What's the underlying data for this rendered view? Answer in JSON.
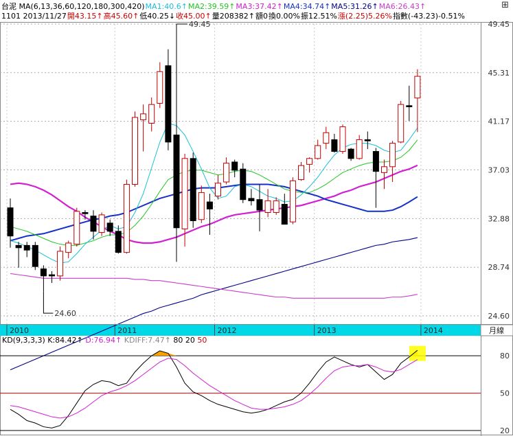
{
  "header": {
    "line1": [
      {
        "text": "台泥 MA(6,13,36,60,120,180,300,420)",
        "color": "#000000"
      },
      {
        "text": "MA1:40.6↑",
        "color": "#19bfd8"
      },
      {
        "text": "MA2:39.59↑",
        "color": "#22c622"
      },
      {
        "text": "MA3:37.42↑",
        "color": "#d020d0"
      },
      {
        "text": "MA4:34.74↑",
        "color": "#1530c8"
      },
      {
        "text": "MA5:31.26↑",
        "color": "#000088"
      },
      {
        "text": "MA6:26.43↑",
        "color": "#c83cc8"
      }
    ],
    "line2": [
      {
        "text": "1101 2013/11/27",
        "color": "#000000"
      },
      {
        "text": "開43.15↑",
        "color": "#cc0000"
      },
      {
        "text": "高45.60↑",
        "color": "#cc0000"
      },
      {
        "text": "低40.25↓",
        "color": "#000000"
      },
      {
        "text": "收45.00↑",
        "color": "#cc0000"
      },
      {
        "text": "量208382↑",
        "color": "#000000"
      },
      {
        "text": "額0",
        "color": "#000000"
      },
      {
        "text": "換0.00%",
        "color": "#000000"
      },
      {
        "text": "振12.51%",
        "color": "#000000"
      },
      {
        "text": "漲(2.25)5.26%",
        "color": "#cc0000"
      },
      {
        "text": "指數(-43.23)-0.51%",
        "color": "#000000"
      }
    ],
    "window_icons": "⊞"
  },
  "kd_header": [
    {
      "text": "KD(9,3,3,3)",
      "color": "#000000"
    },
    {
      "text": "K:84.42↑",
      "color": "#000000"
    },
    {
      "text": "D:76.94↑",
      "color": "#d020d0"
    },
    {
      "text": "KDIFF:7.47↑",
      "color": "#888888"
    },
    {
      "text": "80",
      "color": "#000000"
    },
    {
      "text": "20",
      "color": "#000000"
    },
    {
      "text": "50",
      "color": "#cc0000"
    }
  ],
  "chart_data": [
    {
      "type": "candlestick",
      "title": "台泥 MA(6,13,36,60,120,180,300,420)",
      "period": "月線",
      "ylim": [
        24.6,
        49.45
      ],
      "y_ticks": [
        "49.45",
        "45.31",
        "41.17",
        "37.03",
        "32.88",
        "28.74",
        "24.60"
      ],
      "x_labels": [
        "2010",
        "2011",
        "2012",
        "2013",
        "2014"
      ],
      "annotations": [
        {
          "text": "49.45",
          "kind": "high"
        },
        {
          "text": "24.60",
          "kind": "low"
        }
      ],
      "colors": {
        "up": "#c00000",
        "down": "#000000",
        "ma1": "#19bfd8",
        "ma2": "#22c622",
        "ma3": "#d020d0",
        "ma4": "#1530c8",
        "ma5": "#000088",
        "ma6": "#c83cc8",
        "axis_band": "#00d8e8"
      },
      "candles": [
        {
          "o": 33.8,
          "h": 34.6,
          "l": 30.4,
          "c": 31.4
        },
        {
          "o": 30.6,
          "h": 30.9,
          "l": 28.7,
          "c": 30.4
        },
        {
          "o": 30.6,
          "h": 30.9,
          "l": 29.6,
          "c": 30.2
        },
        {
          "o": 30.6,
          "h": 30.9,
          "l": 28.5,
          "c": 28.8
        },
        {
          "o": 28.6,
          "h": 28.9,
          "l": 26.7,
          "c": 28.0
        },
        {
          "o": 28.1,
          "h": 28.4,
          "l": 27.4,
          "c": 28.0
        },
        {
          "o": 28.0,
          "h": 30.5,
          "l": 27.6,
          "c": 30.1
        },
        {
          "o": 30.0,
          "h": 31.0,
          "l": 29.5,
          "c": 30.8
        },
        {
          "o": 30.7,
          "h": 33.8,
          "l": 30.5,
          "c": 33.5
        },
        {
          "o": 33.4,
          "h": 33.6,
          "l": 32.8,
          "c": 33.3
        },
        {
          "o": 33.1,
          "h": 33.6,
          "l": 31.1,
          "c": 31.8
        },
        {
          "o": 31.7,
          "h": 33.4,
          "l": 31.4,
          "c": 33.2
        },
        {
          "o": 32.5,
          "h": 32.8,
          "l": 31.4,
          "c": 31.8
        },
        {
          "o": 31.8,
          "h": 32.3,
          "l": 29.9,
          "c": 30.0
        },
        {
          "o": 30.0,
          "h": 36.2,
          "l": 29.9,
          "c": 35.8
        },
        {
          "o": 35.8,
          "h": 42.0,
          "l": 35.6,
          "c": 41.5
        },
        {
          "o": 41.3,
          "h": 42.6,
          "l": 38.6,
          "c": 41.8
        },
        {
          "o": 41.0,
          "h": 43.2,
          "l": 40.3,
          "c": 42.6
        },
        {
          "o": 42.7,
          "h": 46.2,
          "l": 42.3,
          "c": 45.4
        },
        {
          "o": 45.9,
          "h": 47.3,
          "l": 38.7,
          "c": 39.4
        },
        {
          "o": 40.0,
          "h": 49.45,
          "l": 29.2,
          "c": 32.1
        },
        {
          "o": 32.0,
          "h": 38.4,
          "l": 30.5,
          "c": 38.0
        },
        {
          "o": 38.0,
          "h": 38.5,
          "l": 32.1,
          "c": 32.7
        },
        {
          "o": 32.8,
          "h": 35.7,
          "l": 32.5,
          "c": 35.1
        },
        {
          "o": 34.3,
          "h": 35.0,
          "l": 31.5,
          "c": 33.7
        },
        {
          "o": 34.8,
          "h": 36.6,
          "l": 34.5,
          "c": 35.9
        },
        {
          "o": 36.0,
          "h": 38.1,
          "l": 35.8,
          "c": 37.6
        },
        {
          "o": 37.7,
          "h": 37.9,
          "l": 36.4,
          "c": 37.0
        },
        {
          "o": 37.1,
          "h": 37.6,
          "l": 34.2,
          "c": 34.5
        },
        {
          "o": 34.6,
          "h": 35.4,
          "l": 34.0,
          "c": 34.4
        },
        {
          "o": 34.5,
          "h": 35.8,
          "l": 31.8,
          "c": 33.6
        },
        {
          "o": 33.4,
          "h": 35.4,
          "l": 33.0,
          "c": 34.4
        },
        {
          "o": 33.4,
          "h": 34.7,
          "l": 33.2,
          "c": 34.4
        },
        {
          "o": 34.1,
          "h": 35.0,
          "l": 32.4,
          "c": 32.4
        },
        {
          "o": 32.6,
          "h": 36.4,
          "l": 32.4,
          "c": 36.1
        },
        {
          "o": 36.2,
          "h": 37.7,
          "l": 36.1,
          "c": 37.4
        },
        {
          "o": 37.5,
          "h": 38.1,
          "l": 36.8,
          "c": 38.0
        },
        {
          "o": 38.0,
          "h": 39.6,
          "l": 37.9,
          "c": 39.1
        },
        {
          "o": 39.3,
          "h": 40.7,
          "l": 38.8,
          "c": 40.2
        },
        {
          "o": 39.6,
          "h": 40.1,
          "l": 38.5,
          "c": 38.6
        },
        {
          "o": 38.6,
          "h": 40.9,
          "l": 38.4,
          "c": 40.7
        },
        {
          "o": 38.8,
          "h": 38.9,
          "l": 37.8,
          "c": 38.0
        },
        {
          "o": 38.0,
          "h": 40.0,
          "l": 37.9,
          "c": 39.6
        },
        {
          "o": 39.6,
          "h": 40.3,
          "l": 38.8,
          "c": 39.5
        },
        {
          "o": 38.6,
          "h": 38.9,
          "l": 33.8,
          "c": 36.9
        },
        {
          "o": 36.8,
          "h": 37.9,
          "l": 35.4,
          "c": 37.3
        },
        {
          "o": 37.3,
          "h": 39.5,
          "l": 36.0,
          "c": 39.3
        },
        {
          "o": 39.4,
          "h": 42.9,
          "l": 39.3,
          "c": 42.6
        },
        {
          "o": 42.5,
          "h": 44.2,
          "l": 41.2,
          "c": 42.4
        },
        {
          "o": 43.15,
          "h": 45.6,
          "l": 40.25,
          "c": 45.0
        }
      ],
      "ma1": [
        31.0,
        30.8,
        30.5,
        30.2,
        29.8,
        29.4,
        29.1,
        29.2,
        29.9,
        30.7,
        31.3,
        31.9,
        32.3,
        32.0,
        32.2,
        33.4,
        35.0,
        37.2,
        39.4,
        41.0,
        40.8,
        40.0,
        38.6,
        37.1,
        35.5,
        34.6,
        34.8,
        35.6,
        35.8,
        35.6,
        35.2,
        34.8,
        34.6,
        34.3,
        34.4,
        34.9,
        35.6,
        36.4,
        37.4,
        38.3,
        38.9,
        39.2,
        39.3,
        39.3,
        39.1,
        38.7,
        38.5,
        38.7,
        39.6,
        40.6
      ],
      "ma2": [
        32.2,
        32.0,
        31.8,
        31.5,
        31.2,
        30.9,
        30.7,
        30.6,
        30.6,
        30.8,
        31.0,
        31.3,
        31.5,
        31.5,
        31.7,
        32.3,
        33.1,
        34.1,
        35.2,
        36.2,
        36.6,
        36.9,
        37.0,
        37.0,
        36.8,
        36.6,
        36.7,
        36.9,
        37.0,
        36.9,
        36.6,
        36.2,
        35.8,
        35.4,
        35.2,
        35.1,
        35.1,
        35.4,
        35.8,
        36.3,
        36.8,
        37.1,
        37.4,
        37.6,
        37.7,
        37.7,
        37.8,
        38.1,
        38.7,
        39.59
      ],
      "ma3": [
        35.8,
        35.9,
        35.8,
        35.6,
        35.3,
        34.9,
        34.4,
        33.9,
        33.5,
        33.0,
        32.6,
        32.2,
        31.8,
        31.5,
        31.1,
        30.9,
        30.8,
        30.8,
        30.9,
        31.1,
        31.3,
        31.6,
        31.9,
        32.2,
        32.4,
        32.7,
        33.0,
        33.2,
        33.3,
        33.4,
        33.5,
        33.6,
        33.7,
        33.8,
        33.9,
        34.0,
        34.2,
        34.4,
        34.6,
        34.8,
        35.1,
        35.3,
        35.6,
        35.8,
        36.0,
        36.3,
        36.6,
        36.9,
        37.1,
        37.42
      ],
      "ma4": [
        31.0,
        31.2,
        31.4,
        31.5,
        31.6,
        31.8,
        32.0,
        32.2,
        32.4,
        32.6,
        32.8,
        32.9,
        33.1,
        33.2,
        33.4,
        33.7,
        34.0,
        34.3,
        34.6,
        34.8,
        35.0,
        35.2,
        35.4,
        35.5,
        35.5,
        35.5,
        35.6,
        35.7,
        35.8,
        35.8,
        35.8,
        35.8,
        35.7,
        35.6,
        35.4,
        35.2,
        35.0,
        34.8,
        34.5,
        34.3,
        34.1,
        33.9,
        33.7,
        33.5,
        33.5,
        33.5,
        33.6,
        33.9,
        34.3,
        34.74
      ],
      "ma5": [
        20.0,
        20.3,
        20.6,
        20.9,
        21.2,
        21.5,
        21.8,
        22.1,
        22.4,
        22.7,
        23.0,
        23.3,
        23.6,
        23.9,
        24.2,
        24.5,
        24.8,
        25.0,
        25.3,
        25.5,
        25.7,
        25.9,
        26.1,
        26.4,
        26.6,
        26.8,
        27.0,
        27.2,
        27.4,
        27.6,
        27.8,
        28.0,
        28.2,
        28.4,
        28.6,
        28.8,
        29.0,
        29.2,
        29.4,
        29.6,
        29.8,
        30.0,
        30.2,
        30.4,
        30.6,
        30.7,
        30.9,
        31.0,
        31.1,
        31.26
      ],
      "ma6": [
        28.2,
        28.1,
        28.0,
        27.9,
        27.8,
        27.8,
        27.8,
        27.8,
        27.8,
        27.8,
        27.8,
        27.8,
        27.8,
        27.8,
        27.8,
        27.7,
        27.7,
        27.6,
        27.6,
        27.5,
        27.4,
        27.3,
        27.2,
        27.1,
        27.0,
        26.9,
        26.8,
        26.7,
        26.6,
        26.5,
        26.4,
        26.3,
        26.2,
        26.2,
        26.1,
        26.1,
        26.1,
        26.1,
        26.1,
        26.1,
        26.1,
        26.1,
        26.1,
        26.1,
        26.1,
        26.1,
        26.2,
        26.2,
        26.3,
        26.43
      ]
    },
    {
      "type": "line",
      "title": "KD(9,3,3,3)",
      "ylim": [
        20,
        90
      ],
      "y_ticks": [
        "80",
        "50",
        "20"
      ],
      "reference_lines": [
        {
          "value": 80,
          "color": "#000000"
        },
        {
          "value": 50,
          "color": "#cc0000"
        },
        {
          "value": 20,
          "color": "#000000"
        }
      ],
      "series": [
        {
          "name": "K",
          "color": "#000000",
          "values": [
            37,
            33,
            28,
            26,
            23,
            22,
            24,
            32,
            42,
            52,
            57,
            60,
            59,
            56,
            58,
            67,
            74,
            80,
            84,
            82,
            71,
            58,
            51,
            48,
            44,
            41,
            39,
            37,
            35,
            34,
            35,
            37,
            40,
            43,
            45,
            50,
            58,
            67,
            75,
            79,
            76,
            73,
            71,
            73,
            67,
            61,
            65,
            74,
            79,
            84.42
          ]
        },
        {
          "name": "D",
          "color": "#d020d0",
          "values": [
            40,
            39,
            37,
            35,
            33,
            31,
            30,
            31,
            34,
            38,
            43,
            48,
            51,
            53,
            56,
            60,
            65,
            70,
            75,
            78,
            77,
            72,
            66,
            61,
            56,
            52,
            48,
            44,
            41,
            38,
            37,
            37,
            38,
            39,
            41,
            44,
            49,
            55,
            62,
            68,
            71,
            72,
            72,
            73,
            71,
            68,
            67,
            69,
            73,
            76.94
          ]
        }
      ]
    }
  ]
}
